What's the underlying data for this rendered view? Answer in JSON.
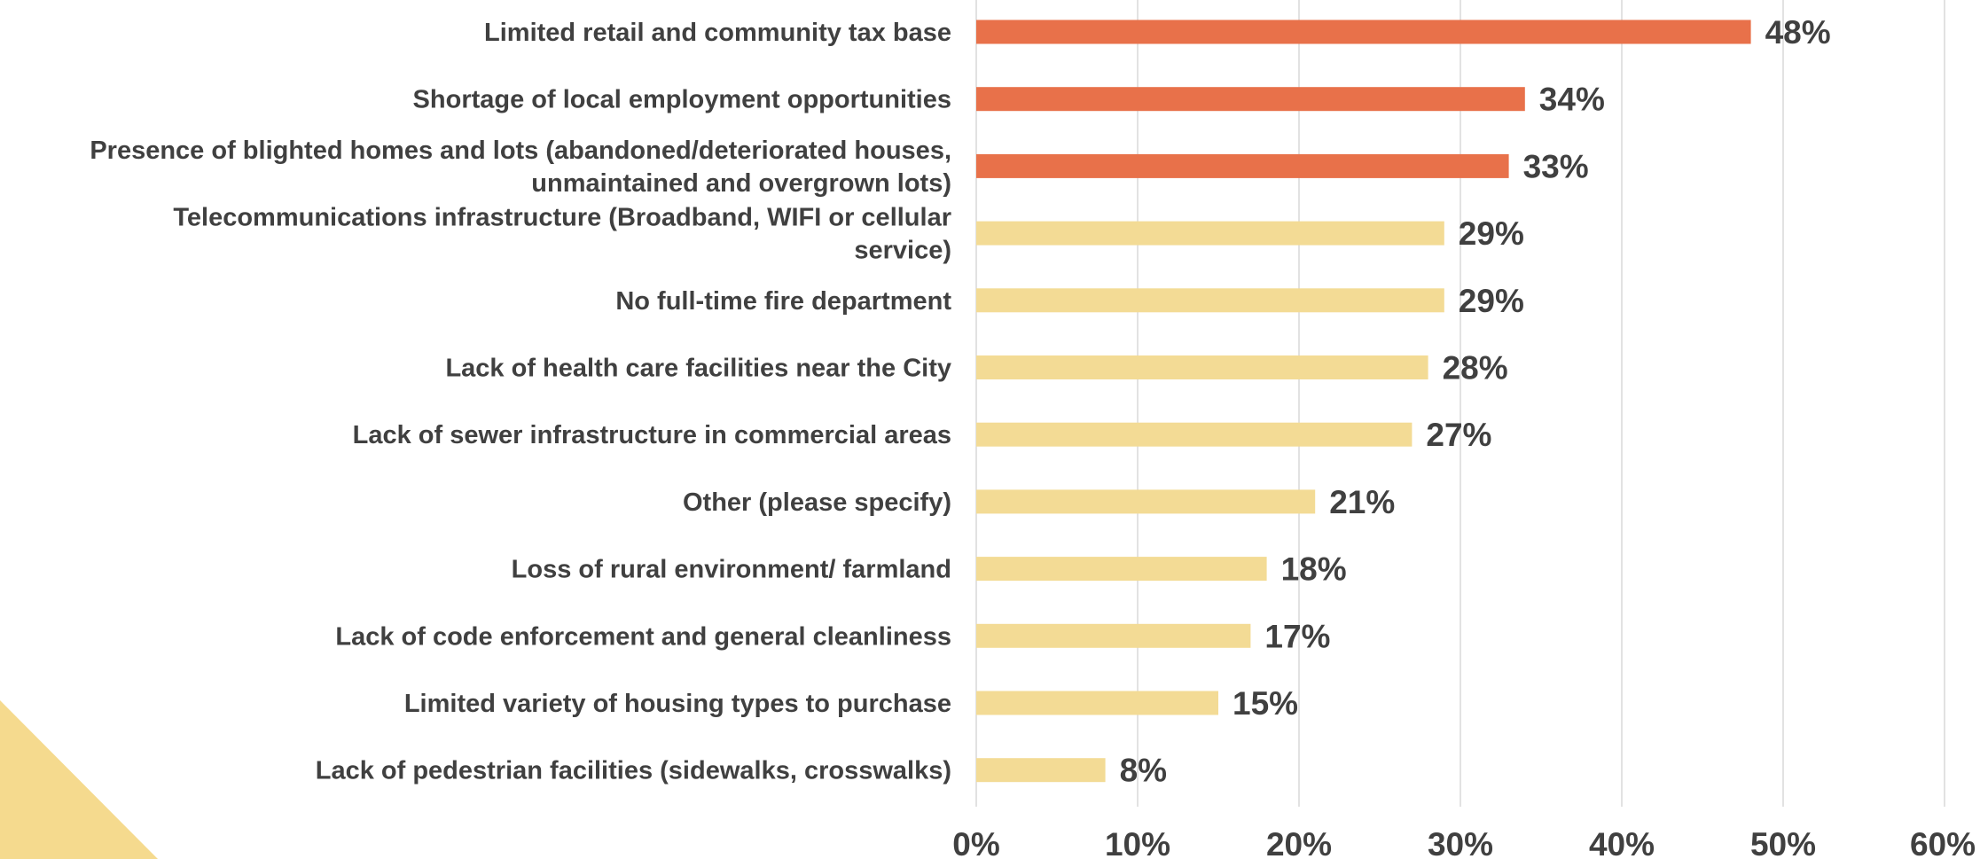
{
  "chart_data": {
    "type": "bar",
    "orientation": "horizontal",
    "title": "",
    "xlabel": "",
    "ylabel": "",
    "categories": [
      [
        "Limited retail and community tax base"
      ],
      [
        "Shortage of local employment opportunities"
      ],
      [
        "Presence of blighted homes and lots (abandoned/deteriorated houses,",
        "unmaintained and overgrown lots)"
      ],
      [
        "Telecommunications infrastructure (Broadband, WIFI or cellular",
        "service)"
      ],
      [
        "No full-time fire department"
      ],
      [
        "Lack of health care facilities near the City"
      ],
      [
        "Lack of sewer infrastructure in commercial areas"
      ],
      [
        "Other (please specify)"
      ],
      [
        "Loss of rural environment/ farmland"
      ],
      [
        "Lack of code enforcement and general cleanliness"
      ],
      [
        "Limited variety of housing types to purchase"
      ],
      [
        "Lack of pedestrian facilities (sidewalks, crosswalks)"
      ]
    ],
    "values": [
      48,
      34,
      33,
      29,
      29,
      28,
      27,
      21,
      18,
      17,
      15,
      8
    ],
    "data_labels": [
      "48%",
      "34%",
      "33%",
      "29%",
      "29%",
      "28%",
      "27%",
      "21%",
      "18%",
      "17%",
      "15%",
      "8%"
    ],
    "highlighted": [
      true,
      true,
      true,
      false,
      false,
      false,
      false,
      false,
      false,
      false,
      false,
      false
    ],
    "xlim": [
      0,
      60
    ],
    "ticks": [
      0,
      10,
      20,
      30,
      40,
      50,
      60
    ],
    "tick_labels": [
      "0%",
      "10%",
      "20%",
      "30%",
      "40%",
      "50%",
      "60%"
    ],
    "grid": "vertical",
    "legend": "none",
    "colors": {
      "highlight": "#E8714A",
      "normal": "#F3DB95",
      "grid": "#D9D9D9",
      "text": "#404040",
      "decoration": "#F5DA8E"
    }
  }
}
